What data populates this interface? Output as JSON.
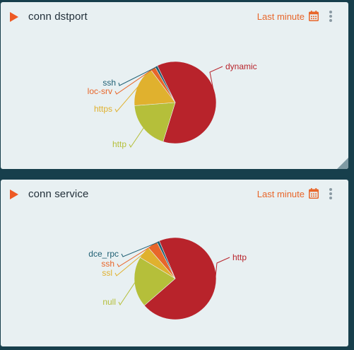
{
  "panels": [
    {
      "title": "conn dstport",
      "time_range": "Last minute",
      "calendar_icon": "calendar-icon",
      "menu_icon": "kebab-menu-icon",
      "chart_data": {
        "type": "pie",
        "title": "conn dstport",
        "slices": [
          {
            "label": "dynamic",
            "value": 62,
            "color": "#b8232b"
          },
          {
            "label": "http",
            "value": 19,
            "color": "#b5bf3a"
          },
          {
            "label": "https",
            "value": 16,
            "color": "#e0b12e"
          },
          {
            "label": "loc-srv",
            "value": 2,
            "color": "#e8662a"
          },
          {
            "label": "ssh",
            "value": 1,
            "color": "#1f5f73"
          }
        ]
      }
    },
    {
      "title": "conn service",
      "time_range": "Last minute",
      "calendar_icon": "calendar-icon",
      "menu_icon": "kebab-menu-icon",
      "chart_data": {
        "type": "pie",
        "title": "conn service",
        "slices": [
          {
            "label": "http",
            "value": 70,
            "color": "#b8232b"
          },
          {
            "label": "null",
            "value": 20,
            "color": "#b5bf3a"
          },
          {
            "label": "ssl",
            "value": 5,
            "color": "#e0b12e"
          },
          {
            "label": "ssh",
            "value": 4,
            "color": "#e8662a"
          },
          {
            "label": "dce_rpc",
            "value": 1,
            "color": "#1f5f73"
          }
        ]
      }
    }
  ]
}
